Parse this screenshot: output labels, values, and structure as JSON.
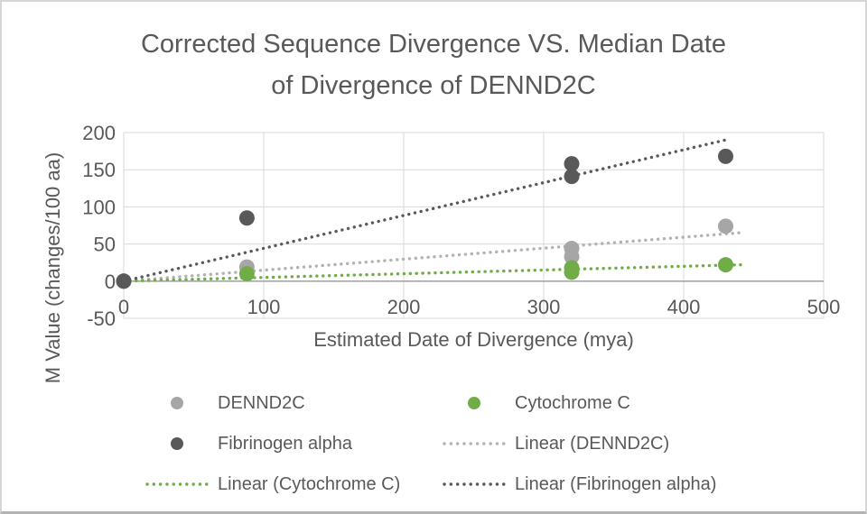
{
  "window": {
    "background": "#ffffff",
    "border_color": "#d6d6d6"
  },
  "chart_data": {
    "type": "scatter",
    "title": "Corrected Sequence Divergence VS. Median Date of Divergence of DENND2C",
    "title_lines": [
      "Corrected Sequence Divergence VS. Median Date",
      "of Divergence of DENND2C"
    ],
    "xlabel": "Estimated Date of Divergence (mya)",
    "ylabel": "M Value (changes/100 aa)",
    "xlim": [
      0,
      500
    ],
    "ylim": [
      -50,
      200
    ],
    "xticks": [
      0,
      100,
      200,
      300,
      400,
      500
    ],
    "yticks": [
      -50,
      0,
      50,
      100,
      150,
      200
    ],
    "grid": true,
    "text_color": "#595959",
    "gridline_color": "#d9d9d9",
    "axis_line_color": "#a6a6a6",
    "series": [
      {
        "name": "DENND2C",
        "color": "#a6a6a6",
        "points": [
          [
            0,
            0
          ],
          [
            88,
            19
          ],
          [
            320,
            33
          ],
          [
            320,
            44
          ],
          [
            430,
            74
          ]
        ]
      },
      {
        "name": "Cytochrome C",
        "color": "#70ad47",
        "points": [
          [
            0,
            0
          ],
          [
            88,
            10
          ],
          [
            320,
            12
          ],
          [
            320,
            18
          ],
          [
            430,
            22
          ]
        ]
      },
      {
        "name": "Fibrinogen alpha",
        "color": "#595959",
        "points": [
          [
            0,
            0
          ],
          [
            88,
            85
          ],
          [
            320,
            141
          ],
          [
            320,
            158
          ],
          [
            430,
            168
          ]
        ]
      }
    ],
    "trendlines": [
      {
        "name": "Linear (DENND2C)",
        "color": "#b3b3b3",
        "slope": 0.148,
        "intercept": 0,
        "x_start": 0,
        "x_end": 443
      },
      {
        "name": "Linear (Cytochrome C)",
        "color": "#70ad47",
        "slope": 0.05,
        "intercept": 0,
        "x_start": 0,
        "x_end": 443
      },
      {
        "name": "Linear (Fibrinogen alpha)",
        "color": "#595959",
        "slope": 0.442,
        "intercept": 0,
        "x_start": 0,
        "x_end": 431
      }
    ],
    "legend": {
      "position": "bottom",
      "items": [
        {
          "label": "DENND2C",
          "marker": "dot",
          "color": "#a6a6a6"
        },
        {
          "label": "Cytochrome C",
          "marker": "dot",
          "color": "#70ad47"
        },
        {
          "label": "Fibrinogen alpha",
          "marker": "dot",
          "color": "#595959"
        },
        {
          "label": "Linear (DENND2C)",
          "marker": "dotted-line",
          "color": "#b3b3b3"
        },
        {
          "label": "Linear (Cytochrome C)",
          "marker": "dotted-line",
          "color": "#70ad47"
        },
        {
          "label": "Linear (Fibrinogen alpha)",
          "marker": "dotted-line",
          "color": "#595959"
        }
      ]
    }
  }
}
